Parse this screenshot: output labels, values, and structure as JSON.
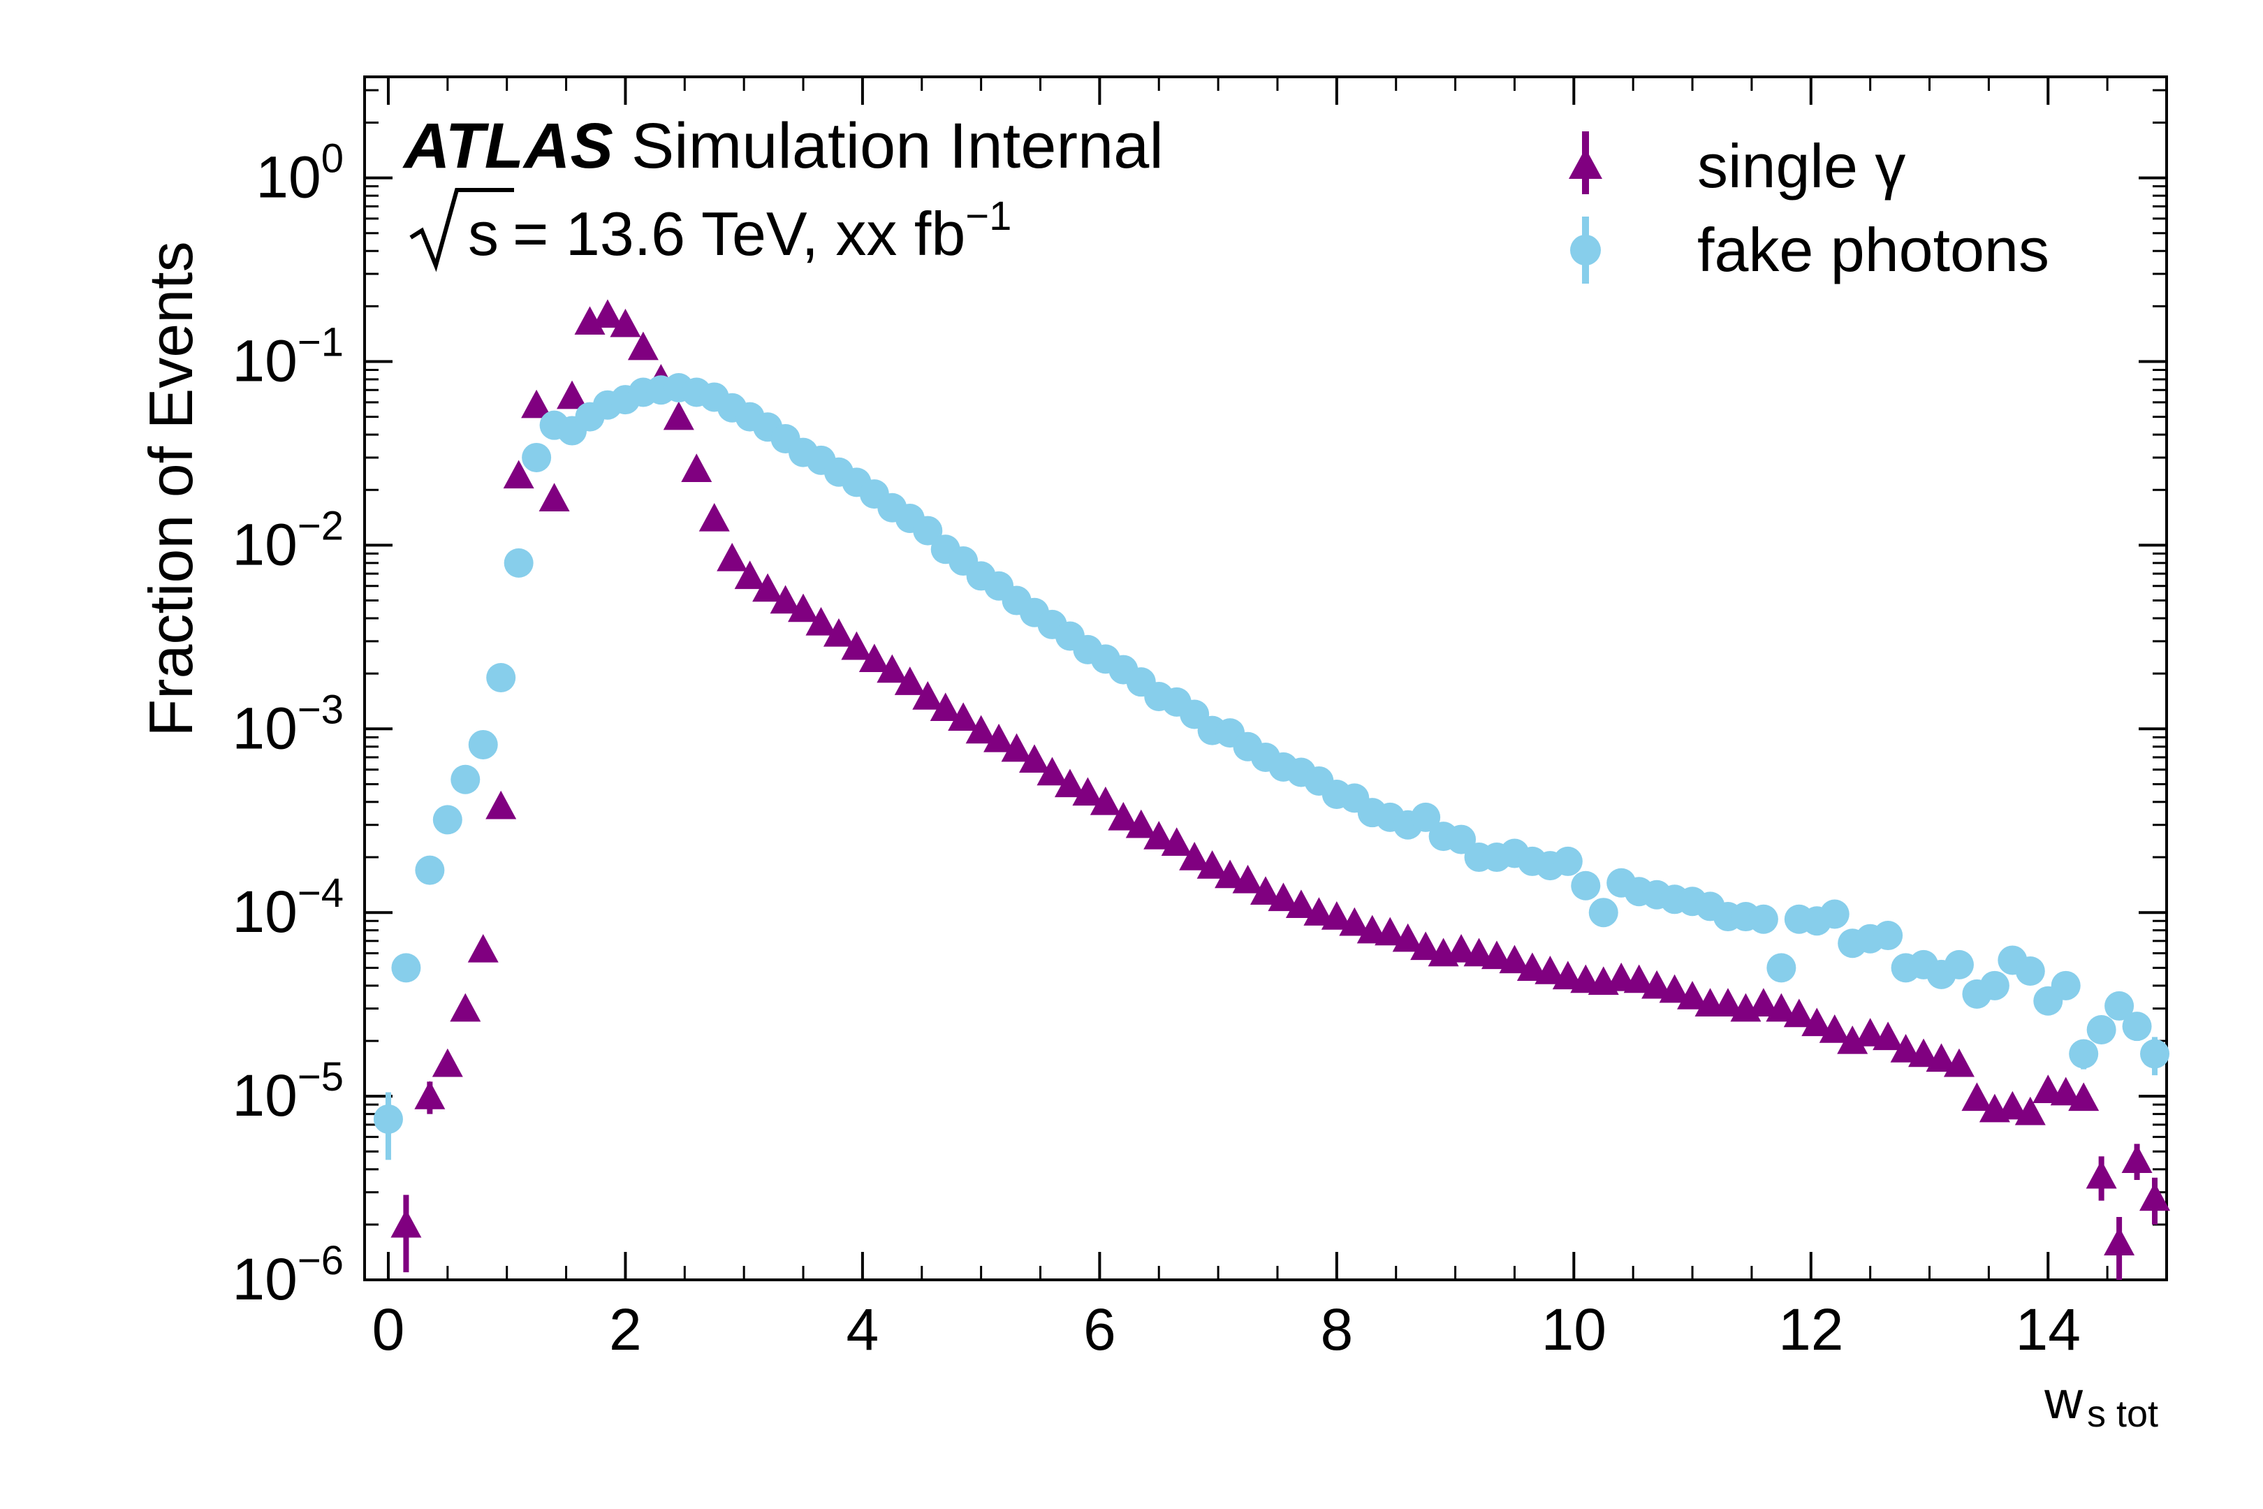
{
  "chart_data": {
    "type": "scatter",
    "title": "",
    "xlabel": "w",
    "xlabel_subscript": "s tot",
    "ylabel": "Fraction of Events",
    "xlim": [
      -0.2,
      15.0
    ],
    "ylim_log10": [
      -6,
      0.55
    ],
    "y_scale": "log",
    "grid": false,
    "legend_position": "top-right",
    "x_ticks": [
      "0",
      "2",
      "4",
      "6",
      "8",
      "10",
      "12",
      "14"
    ],
    "x_tick_values": [
      0,
      2,
      4,
      6,
      8,
      10,
      12,
      14
    ],
    "y_tick_exponents": [
      0,
      -1,
      -2,
      -3,
      -4,
      -5,
      -6
    ],
    "y_tick_base": "10",
    "y_tick_labels": [
      "10^0",
      "10^-1",
      "10^-2",
      "10^-3",
      "10^-4",
      "10^-5",
      "10^-6"
    ],
    "annotation": {
      "experiment": "ATLAS",
      "status": "Simulation Internal",
      "energy_symbol": "s",
      "energy_text": "= 13.6 TeV, xx fb",
      "energy_exponent": "−1"
    },
    "series": [
      {
        "name": "single γ",
        "marker": "triangle",
        "color": "#800080",
        "points": [
          [
            0.15,
            2e-06,
            9e-07
          ],
          [
            0.35,
            1e-05,
            2e-06
          ],
          [
            0.5,
            1.5e-05,
            2e-06
          ],
          [
            0.65,
            3e-05,
            3e-06
          ],
          [
            0.8,
            6.3e-05,
            4e-06
          ],
          [
            0.95,
            0.00038,
            1e-05
          ],
          [
            1.1,
            0.024,
            0
          ],
          [
            1.25,
            0.058,
            0
          ],
          [
            1.4,
            0.018,
            0
          ],
          [
            1.55,
            0.065,
            0
          ],
          [
            1.7,
            0.165,
            0
          ],
          [
            1.85,
            0.18,
            0
          ],
          [
            2.0,
            0.16,
            0
          ],
          [
            2.15,
            0.12,
            0
          ],
          [
            2.3,
            0.08,
            0
          ],
          [
            2.45,
            0.05,
            0
          ],
          [
            2.6,
            0.026,
            0
          ],
          [
            2.75,
            0.014,
            0
          ],
          [
            2.9,
            0.0085,
            0
          ],
          [
            3.05,
            0.0068,
            0
          ],
          [
            3.2,
            0.0058,
            0
          ],
          [
            3.35,
            0.005,
            0
          ],
          [
            3.5,
            0.0045,
            0
          ],
          [
            3.65,
            0.0038,
            0
          ],
          [
            3.8,
            0.0033,
            0
          ],
          [
            3.95,
            0.0028,
            0
          ],
          [
            4.1,
            0.0024,
            0
          ],
          [
            4.25,
            0.0021,
            0
          ],
          [
            4.4,
            0.0018,
            0
          ],
          [
            4.55,
            0.0015,
            0
          ],
          [
            4.7,
            0.0013,
            0
          ],
          [
            4.85,
            0.00115,
            0
          ],
          [
            5.0,
            0.00098,
            0
          ],
          [
            5.15,
            0.00088,
            0
          ],
          [
            5.3,
            0.00078,
            0
          ],
          [
            5.45,
            0.00068,
            0
          ],
          [
            5.6,
            0.00058,
            0
          ],
          [
            5.75,
            0.0005,
            0
          ],
          [
            5.9,
            0.00045,
            0
          ],
          [
            6.05,
            0.0004,
            0
          ],
          [
            6.2,
            0.00033,
            0
          ],
          [
            6.35,
            0.0003,
            0
          ],
          [
            6.5,
            0.00026,
            0
          ],
          [
            6.65,
            0.00024,
            0
          ],
          [
            6.8,
            0.0002,
            0
          ],
          [
            6.95,
            0.00018,
            0
          ],
          [
            7.1,
            0.00016,
            0
          ],
          [
            7.25,
            0.00015,
            0
          ],
          [
            7.4,
            0.00013,
            0
          ],
          [
            7.55,
            0.00012,
            0
          ],
          [
            7.7,
            0.00011,
            0
          ],
          [
            7.85,
            0.0001,
            0
          ],
          [
            8.0,
            9.5e-05,
            0
          ],
          [
            8.15,
            8.8e-05,
            0
          ],
          [
            8.3,
            8e-05,
            0
          ],
          [
            8.45,
            7.8e-05,
            0
          ],
          [
            8.6,
            7.2e-05,
            0
          ],
          [
            8.75,
            6.5e-05,
            0
          ],
          [
            8.9,
            6e-05,
            0
          ],
          [
            9.05,
            6.3e-05,
            0
          ],
          [
            9.2,
            6e-05,
            0
          ],
          [
            9.35,
            5.8e-05,
            0
          ],
          [
            9.5,
            5.5e-05,
            0
          ],
          [
            9.65,
            5e-05,
            0
          ],
          [
            9.8,
            4.8e-05,
            0
          ],
          [
            9.95,
            4.5e-05,
            0
          ],
          [
            10.1,
            4.3e-05,
            0
          ],
          [
            10.25,
            4.2e-05,
            0
          ],
          [
            10.4,
            4.4e-05,
            0
          ],
          [
            10.55,
            4.3e-05,
            0
          ],
          [
            10.7,
            4e-05,
            0
          ],
          [
            10.85,
            3.8e-05,
            0
          ],
          [
            11.0,
            3.5e-05,
            0
          ],
          [
            11.15,
            3.2e-05,
            0
          ],
          [
            11.3,
            3.2e-05,
            0
          ],
          [
            11.45,
            3e-05,
            0
          ],
          [
            11.6,
            3.2e-05,
            0
          ],
          [
            11.75,
            3e-05,
            0
          ],
          [
            11.9,
            2.8e-05,
            0
          ],
          [
            12.05,
            2.5e-05,
            0
          ],
          [
            12.2,
            2.3e-05,
            0
          ],
          [
            12.35,
            2e-05,
            0
          ],
          [
            12.5,
            2.2e-05,
            0
          ],
          [
            12.65,
            2.1e-05,
            0
          ],
          [
            12.8,
            1.8e-05,
            0
          ],
          [
            12.95,
            1.7e-05,
            0
          ],
          [
            13.1,
            1.6e-05,
            0
          ],
          [
            13.25,
            1.5e-05,
            0
          ],
          [
            13.4,
            9.8e-06,
            1e-06
          ],
          [
            13.55,
            8.5e-06,
            1e-06
          ],
          [
            13.7,
            8.8e-06,
            1e-06
          ],
          [
            13.85,
            8.2e-06,
            1e-06
          ],
          [
            14.0,
            1.08e-05,
            1e-06
          ],
          [
            14.15,
            1.05e-05,
            1e-06
          ],
          [
            14.3,
            9.8e-06,
            1e-06
          ],
          [
            14.45,
            3.7e-06,
            1e-06
          ],
          [
            14.6,
            1.6e-06,
            6e-07
          ],
          [
            14.75,
            4.5e-06,
            1e-06
          ],
          [
            14.9,
            2.8e-06,
            8e-07
          ]
        ]
      },
      {
        "name": "fake photons",
        "marker": "circle",
        "color": "#87CEEB",
        "points": [
          [
            0.0,
            7.5e-06,
            3e-06
          ],
          [
            0.15,
            5e-05,
            0
          ],
          [
            0.35,
            0.00017,
            0
          ],
          [
            0.5,
            0.00032,
            0
          ],
          [
            0.65,
            0.00053,
            0
          ],
          [
            0.8,
            0.00082,
            0
          ],
          [
            0.95,
            0.0019,
            0
          ],
          [
            1.1,
            0.008,
            0
          ],
          [
            1.25,
            0.03,
            0
          ],
          [
            1.4,
            0.045,
            0
          ],
          [
            1.55,
            0.042,
            0
          ],
          [
            1.7,
            0.05,
            0
          ],
          [
            1.85,
            0.058,
            0
          ],
          [
            2.0,
            0.062,
            0
          ],
          [
            2.15,
            0.068,
            0
          ],
          [
            2.3,
            0.07,
            0
          ],
          [
            2.45,
            0.072,
            0
          ],
          [
            2.6,
            0.068,
            0
          ],
          [
            2.75,
            0.064,
            0
          ],
          [
            2.9,
            0.056,
            0
          ],
          [
            3.05,
            0.05,
            0
          ],
          [
            3.2,
            0.044,
            0
          ],
          [
            3.35,
            0.038,
            0
          ],
          [
            3.5,
            0.032,
            0
          ],
          [
            3.65,
            0.029,
            0
          ],
          [
            3.8,
            0.025,
            0
          ],
          [
            3.95,
            0.022,
            0
          ],
          [
            4.1,
            0.019,
            0
          ],
          [
            4.25,
            0.016,
            0
          ],
          [
            4.4,
            0.014,
            0
          ],
          [
            4.55,
            0.012,
            0
          ],
          [
            4.7,
            0.0095,
            0
          ],
          [
            4.85,
            0.0082,
            0
          ],
          [
            5.0,
            0.0068,
            0
          ],
          [
            5.15,
            0.006,
            0
          ],
          [
            5.3,
            0.005,
            0
          ],
          [
            5.45,
            0.0043,
            0
          ],
          [
            5.6,
            0.0037,
            0
          ],
          [
            5.75,
            0.0032,
            0
          ],
          [
            5.9,
            0.0027,
            0
          ],
          [
            6.05,
            0.0024,
            0
          ],
          [
            6.2,
            0.0021,
            0
          ],
          [
            6.35,
            0.0018,
            0
          ],
          [
            6.5,
            0.0015,
            0
          ],
          [
            6.65,
            0.0014,
            0
          ],
          [
            6.8,
            0.0012,
            0
          ],
          [
            6.95,
            0.00098,
            0
          ],
          [
            7.1,
            0.00095,
            0
          ],
          [
            7.25,
            0.0008,
            0
          ],
          [
            7.4,
            0.0007,
            0
          ],
          [
            7.55,
            0.00062,
            0
          ],
          [
            7.7,
            0.00058,
            0
          ],
          [
            7.85,
            0.00052,
            0
          ],
          [
            8.0,
            0.00044,
            0
          ],
          [
            8.15,
            0.00042,
            0
          ],
          [
            8.3,
            0.00035,
            0
          ],
          [
            8.45,
            0.00033,
            0
          ],
          [
            8.6,
            0.0003,
            0
          ],
          [
            8.75,
            0.00033,
            0
          ],
          [
            8.9,
            0.00026,
            0
          ],
          [
            9.05,
            0.00025,
            0
          ],
          [
            9.2,
            0.0002,
            0
          ],
          [
            9.35,
            0.0002,
            0
          ],
          [
            9.5,
            0.00021,
            0
          ],
          [
            9.65,
            0.00019,
            0
          ],
          [
            9.8,
            0.00018,
            0
          ],
          [
            9.95,
            0.00019,
            0
          ],
          [
            10.1,
            0.00014,
            0
          ],
          [
            10.25,
            0.0001,
            0
          ],
          [
            10.4,
            0.000145,
            0
          ],
          [
            10.55,
            0.00013,
            0
          ],
          [
            10.7,
            0.000125,
            0
          ],
          [
            10.85,
            0.000118,
            0
          ],
          [
            11.0,
            0.000115,
            0
          ],
          [
            11.15,
            0.000108,
            0
          ],
          [
            11.3,
            9.5e-05,
            0
          ],
          [
            11.45,
            9.5e-05,
            0
          ],
          [
            11.6,
            9.2e-05,
            0
          ],
          [
            11.75,
            5e-05,
            0
          ],
          [
            11.9,
            9.2e-05,
            0
          ],
          [
            12.05,
            9e-05,
            0
          ],
          [
            12.2,
            9.8e-05,
            0
          ],
          [
            12.35,
            6.8e-05,
            0
          ],
          [
            12.5,
            7.2e-05,
            0
          ],
          [
            12.65,
            7.5e-05,
            0
          ],
          [
            12.8,
            5e-05,
            0
          ],
          [
            12.95,
            5.2e-05,
            0
          ],
          [
            13.1,
            4.6e-05,
            0
          ],
          [
            13.25,
            5.2e-05,
            0
          ],
          [
            13.4,
            3.6e-05,
            4e-06
          ],
          [
            13.55,
            4e-05,
            4e-06
          ],
          [
            13.7,
            5.5e-05,
            4e-06
          ],
          [
            13.85,
            4.8e-05,
            4e-06
          ],
          [
            14.0,
            3.3e-05,
            4e-06
          ],
          [
            14.15,
            4e-05,
            4e-06
          ],
          [
            14.3,
            1.7e-05,
            3e-06
          ],
          [
            14.45,
            2.3e-05,
            3e-06
          ],
          [
            14.6,
            3.1e-05,
            4e-06
          ],
          [
            14.75,
            2.4e-05,
            4e-06
          ],
          [
            14.9,
            1.7e-05,
            4e-06
          ]
        ]
      }
    ]
  }
}
